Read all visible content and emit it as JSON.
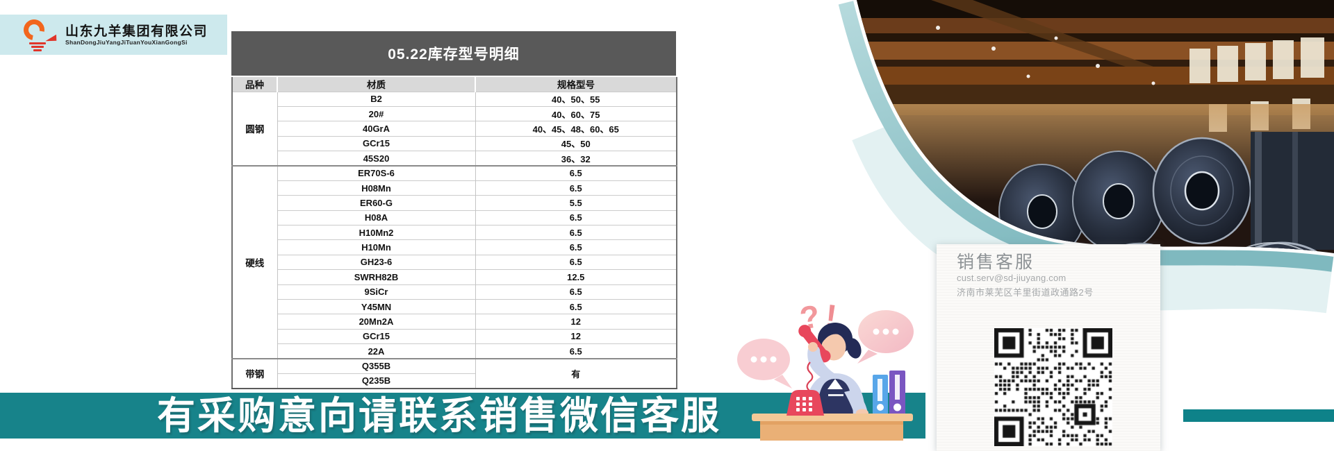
{
  "logo": {
    "company_name": "山东九羊集团有限公司",
    "pinyin": "ShanDongJiuYangJiTuanYouXianGongSi"
  },
  "inventory_table": {
    "title": "05.22库存型号明细",
    "columns": [
      "品种",
      "材质",
      "规格型号"
    ],
    "sections": [
      {
        "category": "圆钢",
        "rows": [
          {
            "material": "B2",
            "spec": "40、50、55"
          },
          {
            "material": "20#",
            "spec": "40、60、75"
          },
          {
            "material": "40GrA",
            "spec": "40、45、48、60、65"
          },
          {
            "material": "GCr15",
            "spec": "45、50"
          },
          {
            "material": "45S20",
            "spec": "36、32"
          }
        ]
      },
      {
        "category": "硬线",
        "rows": [
          {
            "material": "ER70S-6",
            "spec": "6.5"
          },
          {
            "material": "H08Mn",
            "spec": "6.5"
          },
          {
            "material": "ER60-G",
            "spec": "5.5"
          },
          {
            "material": "H08A",
            "spec": "6.5"
          },
          {
            "material": "H10Mn2",
            "spec": "6.5"
          },
          {
            "material": "H10Mn",
            "spec": "6.5"
          },
          {
            "material": "GH23-6",
            "spec": "6.5"
          },
          {
            "material": "SWRH82B",
            "spec": "12.5"
          },
          {
            "material": "9SiCr",
            "spec": "6.5"
          },
          {
            "material": "Y45MN",
            "spec": "6.5"
          },
          {
            "material": "20Mn2A",
            "spec": "12"
          },
          {
            "material": "GCr15",
            "spec": "12"
          },
          {
            "material": "22A",
            "spec": "6.5"
          }
        ]
      },
      {
        "category": "带钢",
        "merged_spec": "有",
        "rows": [
          {
            "material": "Q355B"
          },
          {
            "material": "Q235B"
          }
        ]
      }
    ]
  },
  "contact_card": {
    "heading": "销售客服",
    "email": "cust.serv@sd-jiuyang.com",
    "address": "济南市莱芜区羊里街道政通路2号",
    "qr": "wechat-contact-qr-code"
  },
  "banner": {
    "text": "有采购意向请联系销售微信客服"
  },
  "colors": {
    "banner_teal": "#17838a",
    "accent_bar_teal": "#0e8289",
    "wave_band_teal": "#8ec5c9",
    "wave_light_teal": "#e3f1f2",
    "logo_background": "#cde9ed",
    "logo_orange": "#f2661d",
    "logo_red": "#e0352a",
    "table_title_bar": "#595959",
    "table_header_gray": "#d9d9d9"
  }
}
